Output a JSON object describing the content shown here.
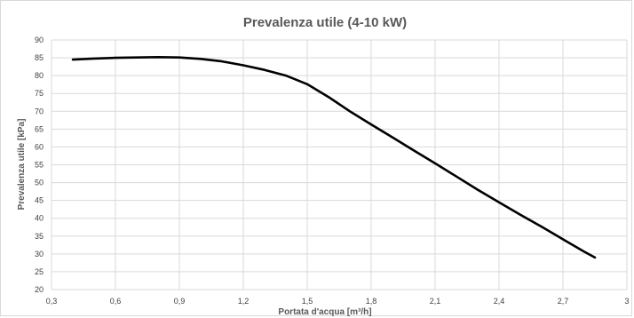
{
  "chart_data": {
    "type": "line",
    "title": "Prevalenza utile (4-10 kW)",
    "xlabel": "Portata d'acqua [m³/h]",
    "ylabel": "Prevalenza utile [kPa]",
    "xlim": [
      0.3,
      3.0
    ],
    "ylim": [
      20,
      90
    ],
    "x_ticks": [
      "0,3",
      "0,6",
      "0,9",
      "1,2",
      "1,5",
      "1,8",
      "2,1",
      "2,4",
      "2,7",
      "3"
    ],
    "y_ticks": [
      "20",
      "25",
      "30",
      "35",
      "40",
      "45",
      "50",
      "55",
      "60",
      "65",
      "70",
      "75",
      "80",
      "85",
      "90"
    ],
    "grid": true,
    "series": [
      {
        "color": "#000000",
        "x": [
          0.4,
          0.5,
          0.6,
          0.7,
          0.8,
          0.9,
          1.0,
          1.1,
          1.2,
          1.3,
          1.4,
          1.5,
          1.6,
          1.7,
          1.8,
          1.9,
          2.0,
          2.1,
          2.2,
          2.3,
          2.4,
          2.5,
          2.6,
          2.7,
          2.8,
          2.85
        ],
        "y": [
          84.5,
          84.8,
          85.0,
          85.1,
          85.2,
          85.1,
          84.7,
          84.0,
          82.9,
          81.6,
          80.0,
          77.6,
          74.0,
          70.0,
          66.3,
          62.7,
          59.0,
          55.4,
          51.7,
          48.0,
          44.5,
          41.0,
          37.6,
          34.1,
          30.6,
          29.0
        ]
      }
    ]
  }
}
